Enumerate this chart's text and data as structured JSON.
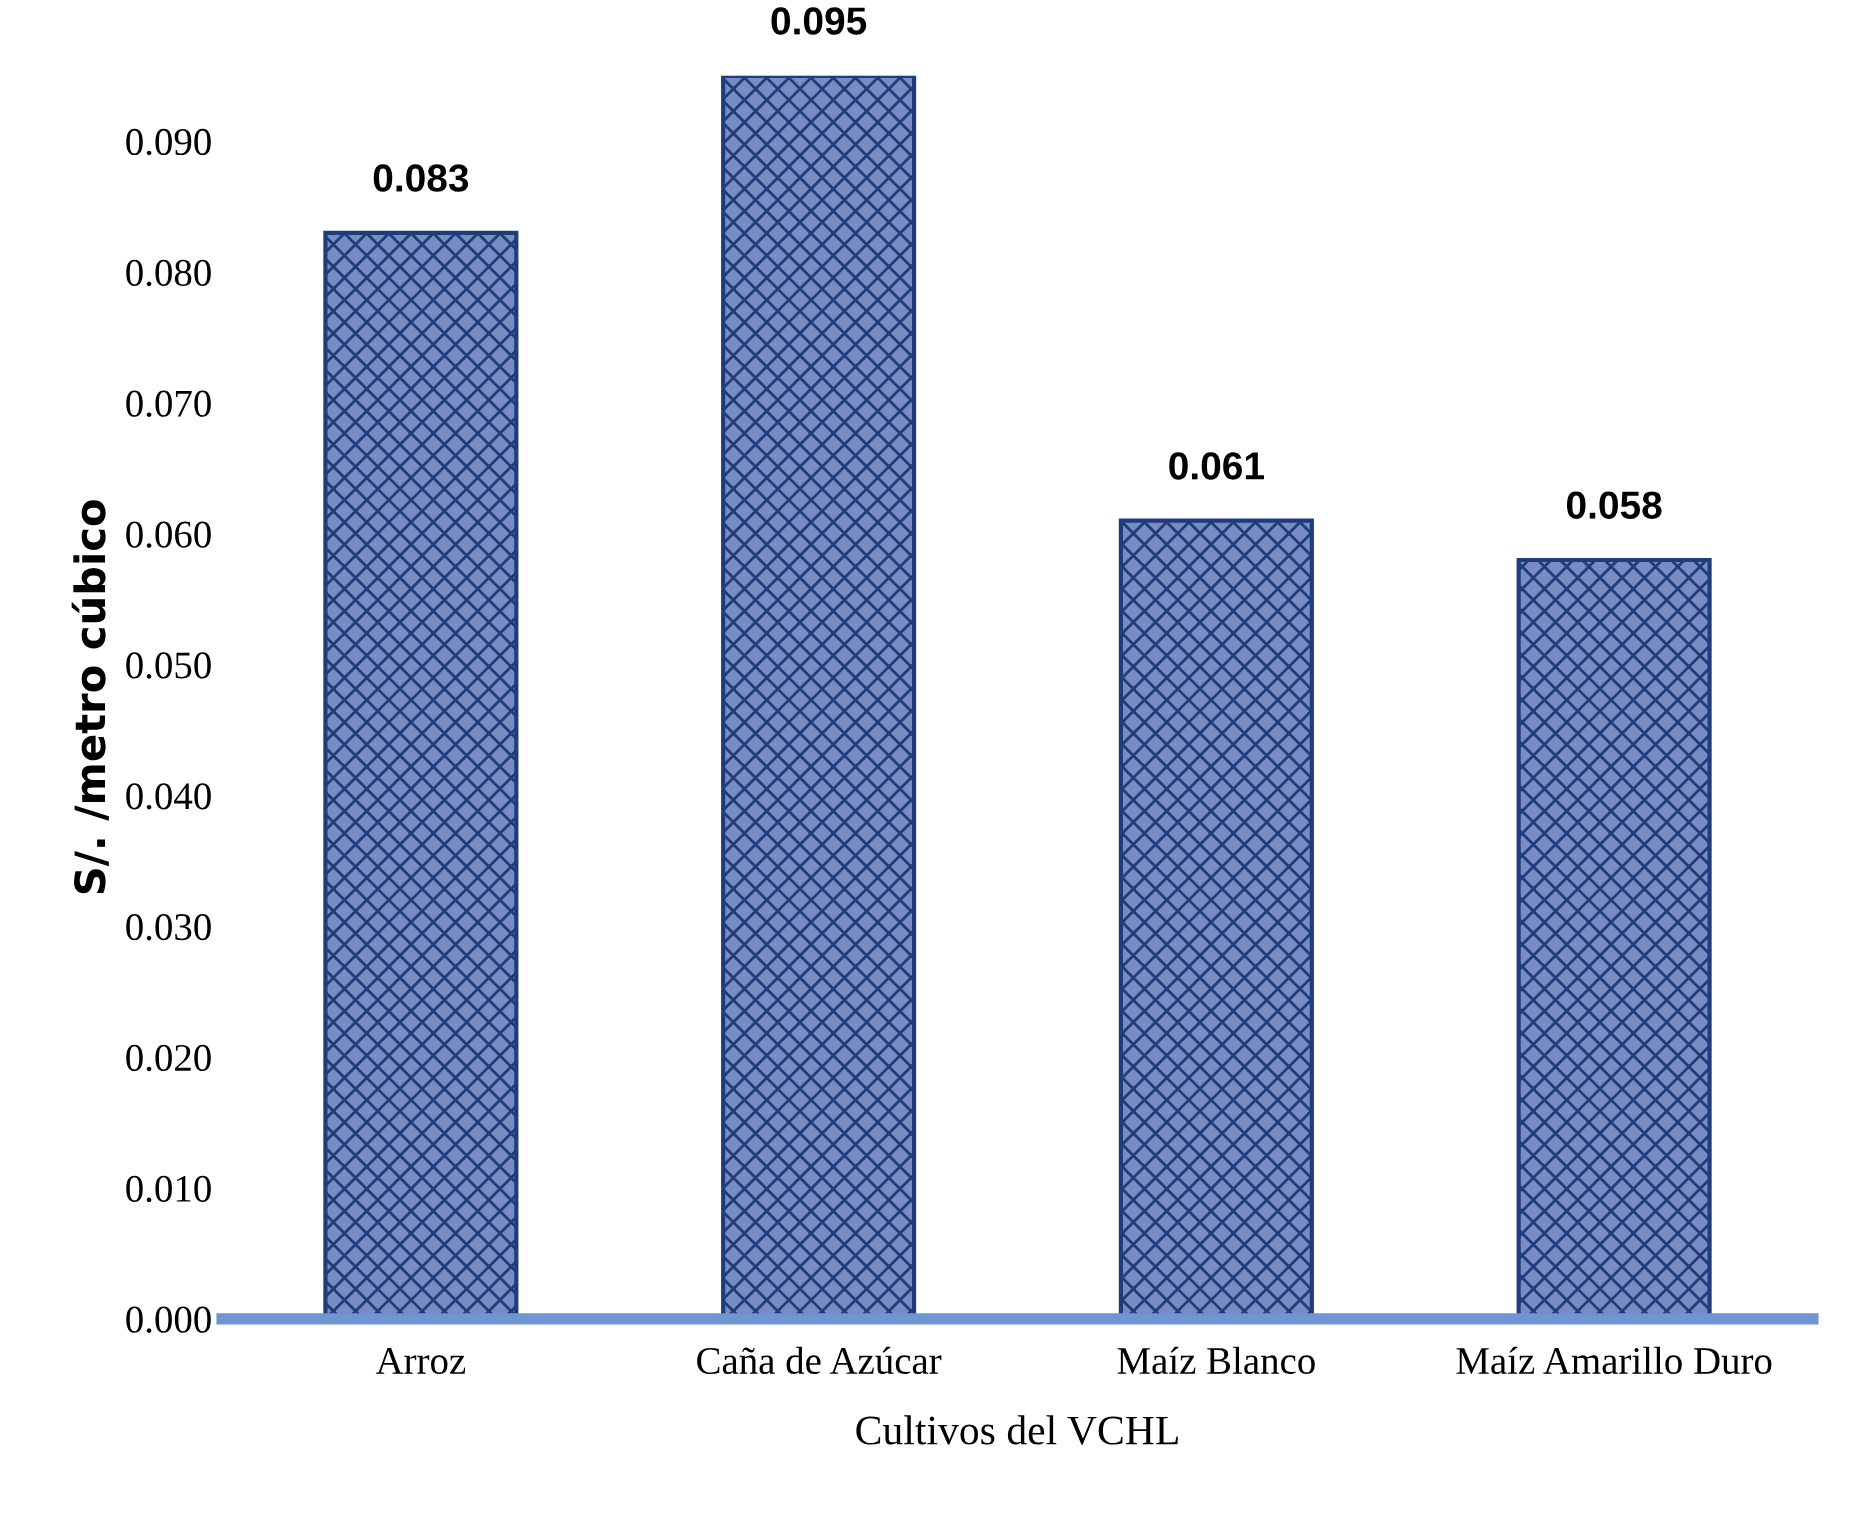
{
  "chart_data": {
    "type": "bar",
    "categories": [
      "Arroz",
      "Caña de Azúcar",
      "Maíz Blanco",
      "Maíz Amarillo Duro"
    ],
    "values": [
      0.083,
      0.095,
      0.061,
      0.058
    ],
    "color": "#1f3d7a",
    "xlabel": "Cultivos del VCHL",
    "ylabel": "S/. /metro cúbico",
    "ylim": [
      0,
      0.095
    ],
    "yticks": [
      {
        "value": 0,
        "label": "0.000"
      },
      {
        "value": 0.01,
        "label": "0.010"
      },
      {
        "value": 0.02,
        "label": "0.020"
      },
      {
        "value": 0.03,
        "label": "0.030"
      },
      {
        "value": 0.04,
        "label": "0.040"
      },
      {
        "value": 0.05,
        "label": "0.050"
      },
      {
        "value": 0.06,
        "label": "0.060"
      },
      {
        "value": 0.07,
        "label": "0.070"
      },
      {
        "value": 0.08,
        "label": "0.080"
      },
      {
        "value": 0.09,
        "label": "0.090"
      }
    ],
    "data_labels": true,
    "grid": false,
    "legend": false
  }
}
